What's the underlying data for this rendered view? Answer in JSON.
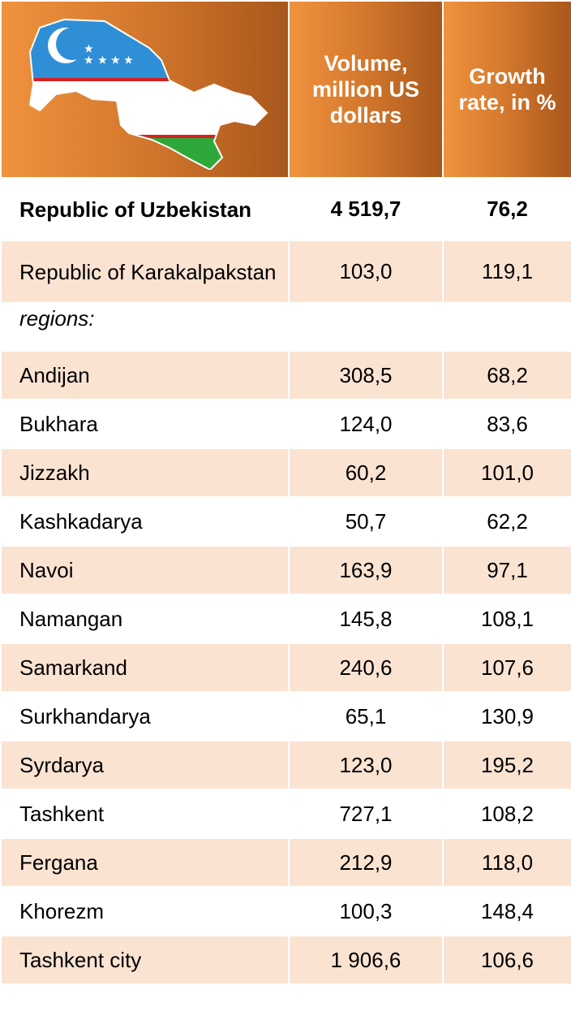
{
  "table": {
    "header": [
      "Volume, million US dollars",
      "Growth rate, in %"
    ],
    "rows": [
      [
        "Republic of Uzbekistan",
        "4 519,7",
        "76,2"
      ],
      [
        "Republic of Karakalpakstan",
        "103,0",
        "119,1"
      ],
      [
        "regions:"
      ],
      [
        "Andijan",
        "308,5",
        "68,2"
      ],
      [
        "Bukhara",
        "124,0",
        "83,6"
      ],
      [
        "Jizzakh",
        "60,2",
        "101,0"
      ],
      [
        "Kashkadarya",
        "50,7",
        "62,2"
      ],
      [
        "Navoi",
        "163,9",
        "97,1"
      ],
      [
        "Namangan",
        "145,8",
        "108,1"
      ],
      [
        "Samarkand",
        "240,6",
        "107,6"
      ],
      [
        "Surkhandarya",
        "65,1",
        "130,9"
      ],
      [
        "Syrdarya",
        "123,0",
        "195,2"
      ],
      [
        "Tashkent",
        "727,1",
        "108,2"
      ],
      [
        "Fergana",
        "212,9",
        "118,0"
      ],
      [
        "Khorezm",
        "100,3",
        "148,4"
      ],
      [
        "Tashkent city",
        "1 906,6",
        "106,6"
      ]
    ]
  }
}
